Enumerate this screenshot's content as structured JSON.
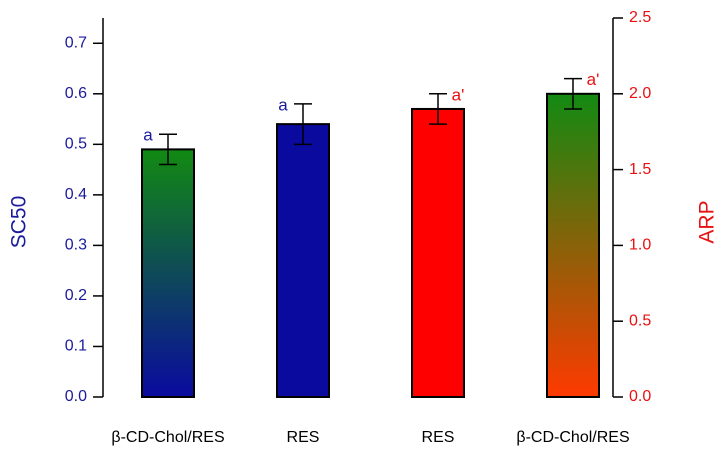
{
  "chart_data": {
    "type": "bar",
    "categories": [
      "β-CD-Chol/RES",
      "RES",
      "RES",
      "β-CD-Chol/RES"
    ],
    "ylabel": "SC50",
    "y2label": "ARP",
    "ylim": [
      0,
      0.75
    ],
    "yticks": [
      {
        "value": 0,
        "label": "0.0"
      },
      0.1,
      0.2,
      0.3,
      0.4,
      0.5,
      0.6,
      0.7
    ],
    "y2lim": [
      0,
      2.5
    ],
    "y2ticks": [
      {
        "value": 0,
        "label": "0.0"
      },
      0.5,
      {
        "value": 1,
        "label": "1.0"
      },
      1.5,
      {
        "value": 2,
        "label": "2.0"
      },
      2.5
    ],
    "ycolor": "#1a1a9c",
    "y2color": "#e81010",
    "series": [
      {
        "axis": "y",
        "values": [
          0.49,
          0.54,
          null,
          null
        ],
        "errors": [
          0.03,
          0.04,
          null,
          null
        ],
        "annotations": [
          "a",
          "a",
          null,
          null
        ],
        "colors": [
          [
            "#128a12",
            "#0a0a9e"
          ],
          [
            "#0a0a9e",
            "#0a0a9e"
          ],
          null,
          null
        ]
      },
      {
        "axis": "y2",
        "values": [
          null,
          null,
          1.9,
          2.0
        ],
        "errors": [
          null,
          null,
          0.1,
          0.1
        ],
        "annotations": [
          null,
          null,
          "a'",
          "a'"
        ],
        "colors": [
          null,
          null,
          [
            "#ff0000",
            "#ff0000"
          ],
          [
            "#128a12",
            "#ff3a00"
          ]
        ]
      }
    ]
  }
}
